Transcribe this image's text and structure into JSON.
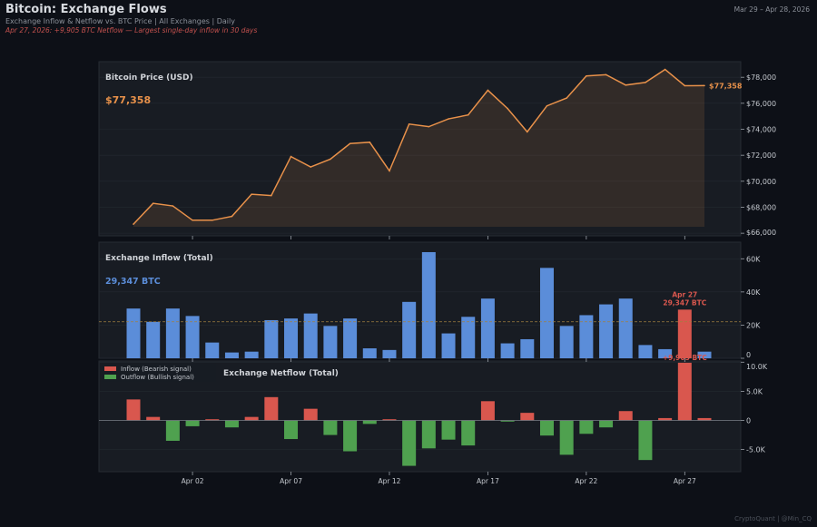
{
  "header": {
    "title": "Bitcoin: Exchange Flows",
    "subtitle": "Exchange Inflow & Netflow vs. BTC Price  |  All Exchanges  |  Daily",
    "note": "Apr 27, 2026: +9,905 BTC Netflow — Largest single-day inflow in 30 days",
    "date_range": "Mar 29 – Apr 28, 2026",
    "credit": "CryptoQuant  |  @Min_CQ"
  },
  "colors": {
    "background": "#0d1017",
    "panel": "#181c23",
    "price": "#e8914a",
    "inflow": "#5b8dd9",
    "netflow_positive": "#d9574e",
    "netflow_negative": "#4fa14f",
    "highlight": "#d9574e",
    "average_line": "#a08040"
  },
  "chart_data": [
    {
      "type": "line",
      "title": "Bitcoin Price (USD)",
      "current_value_label": "$77,358",
      "end_label": "$77,358",
      "x": [
        "Mar 30",
        "Mar 31",
        "Apr 01",
        "Apr 02",
        "Apr 03",
        "Apr 04",
        "Apr 05",
        "Apr 06",
        "Apr 07",
        "Apr 08",
        "Apr 09",
        "Apr 10",
        "Apr 11",
        "Apr 12",
        "Apr 13",
        "Apr 14",
        "Apr 15",
        "Apr 16",
        "Apr 17",
        "Apr 18",
        "Apr 19",
        "Apr 20",
        "Apr 21",
        "Apr 22",
        "Apr 23",
        "Apr 24",
        "Apr 25",
        "Apr 26",
        "Apr 27",
        "Apr 28"
      ],
      "values": [
        66700,
        68300,
        68100,
        67000,
        67000,
        67300,
        69000,
        68900,
        71900,
        71100,
        71700,
        72900,
        73000,
        70800,
        74400,
        74200,
        74800,
        75100,
        77000,
        75600,
        73800,
        75800,
        76400,
        78100,
        78200,
        77400,
        77600,
        78600,
        77350,
        77358
      ],
      "ylim": [
        65800,
        79200
      ],
      "yticks": [
        66000,
        68000,
        70000,
        72000,
        74000,
        76000,
        78000
      ],
      "ytick_labels": [
        "$66,000",
        "$68,000",
        "$70,000",
        "$72,000",
        "$74,000",
        "$76,000",
        "$78,000"
      ],
      "fill": "area"
    },
    {
      "type": "bar",
      "title": "Exchange Inflow (Total)",
      "current_value_label": "29,347 BTC",
      "values": [
        30000,
        22000,
        30000,
        25500,
        9500,
        3500,
        4000,
        23000,
        24000,
        27000,
        19500,
        24000,
        6000,
        5000,
        34000,
        64000,
        15000,
        25000,
        36000,
        9000,
        11500,
        54500,
        19500,
        26000,
        32500,
        36000,
        8000,
        5500,
        29347,
        4000
      ],
      "average": 22000,
      "highlight": {
        "index": 28,
        "date_label": "Apr 27",
        "value_label": "29,347 BTC"
      },
      "ylim": [
        0,
        70000
      ],
      "yticks": [
        0,
        20000,
        40000,
        60000
      ],
      "ytick_labels": [
        "0",
        "20K",
        "40K",
        "60K"
      ]
    },
    {
      "type": "bar",
      "title": "Exchange Netflow (Total)",
      "values": [
        3600,
        600,
        -3500,
        -1000,
        200,
        -1200,
        600,
        4000,
        -3200,
        2000,
        -2500,
        -5300,
        -600,
        200,
        -7800,
        -4800,
        -3300,
        -4300,
        3300,
        -200,
        1300,
        -2600,
        -5900,
        -2300,
        -1200,
        1600,
        -6800,
        400,
        9905,
        400
      ],
      "highlight": {
        "index": 28,
        "value_label": "+9,905 BTC"
      },
      "legend": [
        {
          "label": "Inflow (Bearish signal)",
          "color": "#d9574e"
        },
        {
          "label": "Outflow (Bullish signal)",
          "color": "#4fa14f"
        }
      ],
      "legend_position": "top-left",
      "ylim": [
        -8800,
        10200
      ],
      "yticks": [
        -5000,
        0,
        5000,
        10000
      ],
      "ytick_labels": [
        "-5.0K",
        "0",
        "5.0K",
        "10.0K"
      ]
    }
  ],
  "x_axis": {
    "tick_indices": [
      3,
      8,
      13,
      18,
      23,
      28
    ],
    "tick_labels": [
      "Apr 02",
      "Apr 07",
      "Apr 12",
      "Apr 17",
      "Apr 22",
      "Apr 27"
    ]
  }
}
